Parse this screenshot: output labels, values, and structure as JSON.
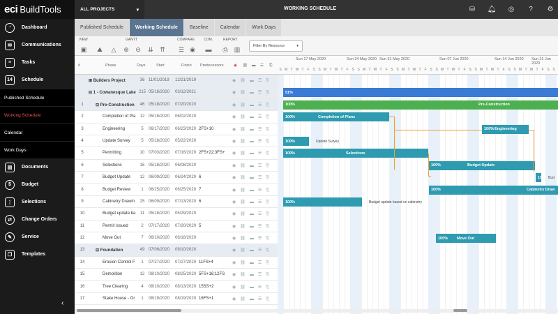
{
  "brand": {
    "eci": "eci",
    "name": "BuildTools"
  },
  "nav": {
    "dashboard": "Dashboard",
    "communications": "Communications",
    "tasks": "Tasks",
    "schedule": "Schedule",
    "published": "Published Schedule",
    "working": "Working Schedule",
    "calendar": "Calendar",
    "workdays": "Work Days",
    "documents": "Documents",
    "budget": "Budget",
    "selections": "Selections",
    "change_orders": "Change Orders",
    "service": "Service",
    "templates": "Templates"
  },
  "topbar": {
    "project": "ALL PROJECTS",
    "title": "WORKING SCHEDULE"
  },
  "tabs": [
    "Published Schedule",
    "Working Schedule",
    "Baseline",
    "Calendar",
    "Work Days"
  ],
  "toolbar": {
    "view": "VIEW",
    "gantt": "GANTT",
    "compare": "COMPARE",
    "com": "COM.",
    "report": "REPORT",
    "filter": "Filter By Resource"
  },
  "columns": {
    "num": "#",
    "phase": "Phase",
    "days": "Days",
    "start": "Start",
    "finish": "Finish",
    "pred": "Predecessors"
  },
  "rows": [
    {
      "num": "",
      "phase": "⊞ Builders Project",
      "days": "36",
      "start": "11/01/2019",
      "finish": "12/21/2019",
      "pred": ""
    },
    {
      "num": "",
      "phase": "⊟ 1 - Cowanesque Lake",
      "days": "215",
      "start": "05/18/2020",
      "finish": "03/12/2021",
      "pred": ""
    },
    {
      "num": "1",
      "phase": "⊟ Pre-Construction",
      "days": "46",
      "start": "05/18/2020",
      "finish": "07/20/2020",
      "pred": ""
    },
    {
      "num": "2",
      "phase": "Completion of Pla",
      "days": "12",
      "start": "05/18/2020",
      "finish": "06/02/2020",
      "pred": ""
    },
    {
      "num": "3",
      "phase": "Engineering",
      "days": "5",
      "start": "06/17/2020",
      "finish": "06/23/2020",
      "pred": "2FS+10"
    },
    {
      "num": "4",
      "phase": "Update Survey",
      "days": "5",
      "start": "05/18/2020",
      "finish": "05/22/2020",
      "pred": ""
    },
    {
      "num": "5",
      "phase": "Permitting",
      "days": "10",
      "start": "07/03/2020",
      "finish": "07/16/2020",
      "pred": "2FS+22;3FS+"
    },
    {
      "num": "6",
      "phase": "Selections",
      "days": "16",
      "start": "05/18/2020",
      "finish": "06/08/2020",
      "pred": ""
    },
    {
      "num": "7",
      "phase": "Budget Update",
      "days": "12",
      "start": "06/09/2020",
      "finish": "06/24/2020",
      "pred": "6"
    },
    {
      "num": "8",
      "phase": "Budget Review",
      "days": "1",
      "start": "06/25/2020",
      "finish": "06/25/2020",
      "pred": "7"
    },
    {
      "num": "9",
      "phase": "Cabinetry Drawin",
      "days": "25",
      "start": "06/09/2020",
      "finish": "07/13/2020",
      "pred": "6"
    },
    {
      "num": "10",
      "phase": "Budget update ba",
      "days": "11",
      "start": "05/18/2020",
      "finish": "05/29/2020",
      "pred": ""
    },
    {
      "num": "11",
      "phase": "Permit Issued",
      "days": "2",
      "start": "07/17/2020",
      "finish": "07/20/2020",
      "pred": "5"
    },
    {
      "num": "12",
      "phase": "Move Out",
      "days": "7",
      "start": "06/10/2020",
      "finish": "06/18/2020",
      "pred": ""
    },
    {
      "num": "13",
      "phase": "⊟ Foundation",
      "days": "49",
      "start": "07/06/2020",
      "finish": "09/10/2020",
      "pred": ""
    },
    {
      "num": "14",
      "phase": "Erosion Control F",
      "days": "1",
      "start": "07/27/2020",
      "finish": "07/27/2020",
      "pred": "11FS+4"
    },
    {
      "num": "15",
      "phase": "Demolition",
      "days": "12",
      "start": "08/10/2020",
      "finish": "08/25/2020",
      "pred": "5FS+16;12FS"
    },
    {
      "num": "16",
      "phase": "Tree Clearing",
      "days": "4",
      "start": "08/10/2020",
      "finish": "08/13/2020",
      "pred": "15SS+2"
    },
    {
      "num": "17",
      "phase": "Stake House - Or",
      "days": "1",
      "start": "08/19/2020",
      "finish": "08/19/2020",
      "pred": "16FS+1"
    }
  ],
  "weeks": [
    "Sun 17 May 2020",
    "Sun 24 May 2020",
    "Sun 31 May 2020",
    "Sun 07 Jun 2020",
    "Sun 14 Jun 2020",
    "Sun 21 Jun 2020"
  ],
  "days": [
    "S",
    "M",
    "T",
    "W",
    "T",
    "F",
    "S"
  ],
  "bars": {
    "b51": "51%",
    "pre": "100%",
    "pre_lbl": "Pre-Construction",
    "cop": "100%",
    "cop_lbl": "Completion of Plans",
    "eng": "100%",
    "eng_lbl": "Engineering",
    "us": "100%",
    "us_note": "Update Survey",
    "sel": "100%",
    "sel_lbl": "Selections",
    "bu": "100%",
    "bu_lbl": "Budget Update",
    "br": "10",
    "br_note": "Bud",
    "cab": "100%",
    "cab_lbl": "Cabinetry Draw",
    "bub": "100%",
    "bub_note": "Budget update based on cabinetry",
    "mo": "100%",
    "mo_lbl": "Move Out"
  },
  "colors": {
    "blue": "#3a7bd5",
    "green": "#4caf50",
    "teal": "#2e9bb0",
    "arrow": "#f0a030"
  }
}
